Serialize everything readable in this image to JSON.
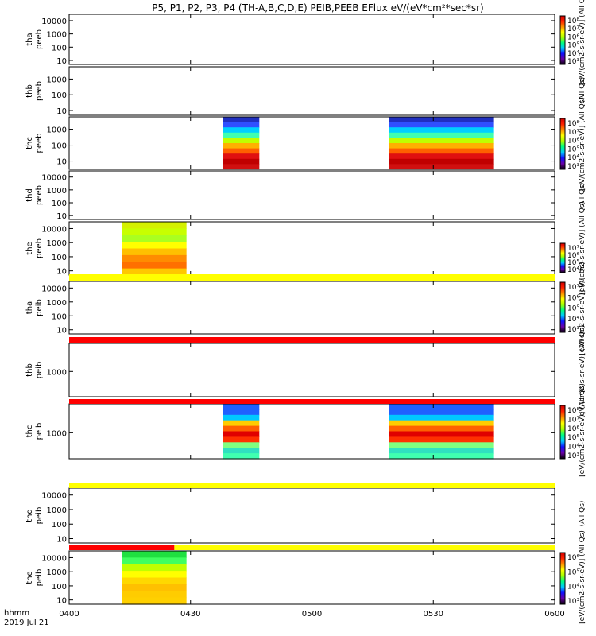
{
  "title": "P5, P1, P2, P3, P4 (TH-A,B,C,D,E) PEIB,PEEB EFlux eV/(eV*cm²*sec*sr)",
  "time_labels": {
    "row1": "hhmm",
    "row2": "2019 Jul 21"
  },
  "chart_data": [
    {
      "type": "heatmap",
      "name": "tha peeb",
      "ylabel": [
        "tha",
        "peeb"
      ],
      "yticks": [
        "10000",
        "1000",
        "100",
        "10"
      ],
      "ylog": true,
      "ylim": [
        5,
        30000
      ],
      "blocks": [],
      "colorbar": {
        "labels": [
          "10⁸",
          "10⁷",
          "10⁶",
          "10⁵",
          "10⁴",
          "10³"
        ],
        "title": "[eV/(cm2-s-sr-eV)] (All Qs)"
      }
    },
    {
      "type": "heatmap",
      "name": "thb peeb",
      "ylabel": [
        "thb",
        "peeb"
      ],
      "yticks": [
        "1000",
        "100",
        "10"
      ],
      "ylog": true,
      "ylim": [
        5,
        6000
      ],
      "blocks": [],
      "colorbar": {
        "labels": [],
        "title": "(All Qs)"
      }
    },
    {
      "type": "heatmap",
      "name": "thc peeb",
      "ylabel": [
        "thc",
        "peeb"
      ],
      "yticks": [
        "1000",
        "100",
        "10"
      ],
      "ylog": true,
      "ylim": [
        3,
        6000
      ],
      "blocks": [
        {
          "t0": "04:38",
          "t1": "04:47",
          "profile": "peeb_c"
        },
        {
          "t0": "05:19",
          "t1": "05:45",
          "profile": "peeb_c"
        }
      ],
      "colorbar": {
        "labels": [
          "10⁸",
          "10⁷",
          "10⁶",
          "10⁵",
          "10⁴",
          "10³"
        ],
        "title": "[eV/(cm2-s-sr-eV)] (All Qs)"
      }
    },
    {
      "type": "heatmap",
      "name": "thd peeb",
      "ylabel": [
        "thd",
        "peeb"
      ],
      "yticks": [
        "10000",
        "1000",
        "100",
        "10"
      ],
      "ylog": true,
      "ylim": [
        5,
        30000
      ],
      "blocks": [],
      "colorbar": {
        "labels": [],
        "title": "(All Qs)"
      }
    },
    {
      "type": "heatmap",
      "name": "the peeb",
      "ylabel": [
        "the",
        "peeb"
      ],
      "yticks": [
        "10000",
        "1000",
        "100",
        "10"
      ],
      "ylog": true,
      "ylim": [
        5,
        30000
      ],
      "blocks": [
        {
          "t0": "04:13",
          "t1": "04:29",
          "profile": "peeb_e"
        }
      ],
      "colorbar": {
        "labels": [
          "10⁷",
          "10⁶",
          "10⁵",
          "10⁴"
        ],
        "title": "[eV/(cm2-s-sr-eV)] (All Qs)"
      }
    },
    {
      "type": "heatmap",
      "name": "tha peib",
      "ylabel": [
        "tha",
        "peib"
      ],
      "yticks": [
        "10000",
        "1000",
        "100",
        "10"
      ],
      "ylog": true,
      "ylim": [
        5,
        30000
      ],
      "blocks": [],
      "strip": [
        {
          "t0": "04:00",
          "t1": "06:00",
          "color": "#ffff00"
        }
      ],
      "colorbar": {
        "labels": [
          "10⁷",
          "10⁶",
          "10⁵",
          "10⁴",
          "10³"
        ],
        "title": "[eV/(cm2-s-sr-eV)] (All Qs)"
      }
    },
    {
      "type": "heatmap",
      "name": "thb peib",
      "ylabel": [
        "thb",
        "peib"
      ],
      "yticks": [
        "1000"
      ],
      "ylog": true,
      "ylim": [
        200,
        6000
      ],
      "blocks": [],
      "strip": [
        {
          "t0": "04:00",
          "t1": "06:00",
          "color": "#ff0000"
        }
      ],
      "colorbar": {
        "labels": [],
        "title": "eV/(cm2-s-sr-eV)] (All Qs)"
      }
    },
    {
      "type": "heatmap",
      "name": "thc peib",
      "ylabel": [
        "thc",
        "peib"
      ],
      "yticks": [
        "1000"
      ],
      "ylog": true,
      "ylim": [
        200,
        6000
      ],
      "blocks": [
        {
          "t0": "04:38",
          "t1": "04:47",
          "profile": "peib_c"
        },
        {
          "t0": "05:19",
          "t1": "05:45",
          "profile": "peib_c"
        }
      ],
      "strip": [
        {
          "t0": "04:00",
          "t1": "06:00",
          "color": "#ff0000"
        }
      ],
      "colorbar": {
        "labels": [
          "10⁸",
          "10⁷",
          "10⁶",
          "10⁵",
          "10⁴",
          "10³"
        ],
        "title": "[eV/(cm2-s-sr-eV)] (All Qs)"
      }
    },
    {
      "type": "heatmap",
      "name": "thd peib",
      "ylabel": [
        "thd",
        "peib"
      ],
      "yticks": [
        "10000",
        "1000",
        "100",
        "10"
      ],
      "ylog": true,
      "ylim": [
        5,
        30000
      ],
      "blocks": [],
      "strip": [
        {
          "t0": "04:00",
          "t1": "06:00",
          "color": "#ffff00"
        }
      ],
      "colorbar": {
        "labels": [],
        "title": "(All Qs)"
      }
    },
    {
      "type": "heatmap",
      "name": "the peib",
      "ylabel": [
        "the",
        "peib"
      ],
      "yticks": [
        "10000",
        "1000",
        "100",
        "10"
      ],
      "ylog": true,
      "ylim": [
        5,
        30000
      ],
      "blocks": [
        {
          "t0": "04:13",
          "t1": "04:29",
          "profile": "peib_e"
        }
      ],
      "strip": [
        {
          "t0": "04:00",
          "t1": "04:26",
          "color": "#ff0000"
        },
        {
          "t0": "04:26",
          "t1": "06:00",
          "color": "#ffff00"
        }
      ],
      "colorbar": {
        "labels": [
          "10⁶",
          "10⁵",
          "10⁴",
          "10³"
        ],
        "title": "[eV/(cm2-s-sr-eV)] (All Qs)"
      }
    }
  ],
  "x_axis": {
    "ticks": [
      "0400",
      "0430",
      "0500",
      "0530",
      "0600"
    ],
    "tick_values": [
      "04:00",
      "04:30",
      "05:00",
      "05:30",
      "06:00"
    ],
    "range": [
      "04:00",
      "06:00"
    ]
  },
  "colors": {
    "spectrum": [
      "#000000",
      "#6a00a8",
      "#1010ff",
      "#00c8ff",
      "#00ff80",
      "#aaff00",
      "#ffff00",
      "#ff8c00",
      "#ff2000",
      "#d00000"
    ],
    "strip_yellow": "#ffff00",
    "strip_red": "#ff0000"
  },
  "profiles": {
    "peeb_c": [
      "#2030c0",
      "#3050ff",
      "#00d0ff",
      "#40ffb0",
      "#c0ff00",
      "#ffb000",
      "#ff6000",
      "#e01010",
      "#c00000",
      "#d01010"
    ],
    "peeb_e": [
      "#d4f000",
      "#c8ff00",
      "#aaff20",
      "#ffff00",
      "#ffc000",
      "#ff8c00",
      "#ff7000",
      "#ffc800"
    ],
    "peib_c": [
      "#2060ff",
      "#2060ff",
      "#00c8ff",
      "#ffcc00",
      "#ff6000",
      "#e00000",
      "#ff3000",
      "#80ff80",
      "#30e0c0",
      "#40ffb0"
    ],
    "peib_e": [
      "#20e040",
      "#40ff60",
      "#c0ff00",
      "#ffff00",
      "#ffd800",
      "#ffc000",
      "#ffcc00",
      "#ffd000"
    ]
  }
}
